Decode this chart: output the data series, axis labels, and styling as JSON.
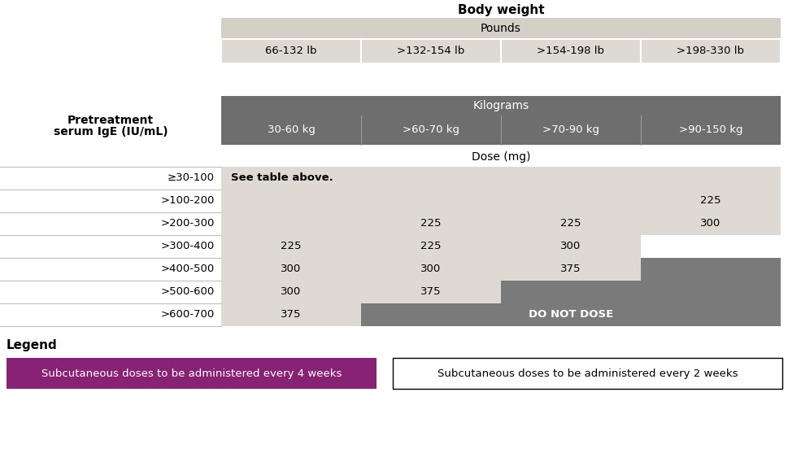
{
  "title_body_weight": "Body weight",
  "pounds_header": "Pounds",
  "pounds_cols": [
    "66-132 lb",
    ">132-154 lb",
    ">154-198 lb",
    ">198-330 lb"
  ],
  "kg_header": "Kilograms",
  "kg_cols": [
    "30-60 kg",
    ">60-70 kg",
    ">70-90 kg",
    ">90-150 kg"
  ],
  "ylabel_line1": "Pretreatment",
  "ylabel_line2": "serum IgE (IU/mL)",
  "dose_header": "Dose (mg)",
  "ige_rows": [
    "≥30-100",
    ">100-200",
    ">200-300",
    ">300-400",
    ">400-500",
    ">500-600",
    ">600-700"
  ],
  "color_light": "#dedad3",
  "color_dark": "#7a7a7a",
  "color_purple": "#872274",
  "color_white": "#ffffff",
  "color_kg_header": "#6e6e6e",
  "color_pounds_header": "#d4d0c8",
  "color_pounds_cols": "#dedad3",
  "legend_4weeks": "Subcutaneous doses to be administered every 4 weeks",
  "legend_2weeks": "Subcutaneous doses to be administered every 2 weeks",
  "legend_label": "Legend",
  "see_table": "See table above.",
  "do_not_dose": "DO NOT DOSE"
}
